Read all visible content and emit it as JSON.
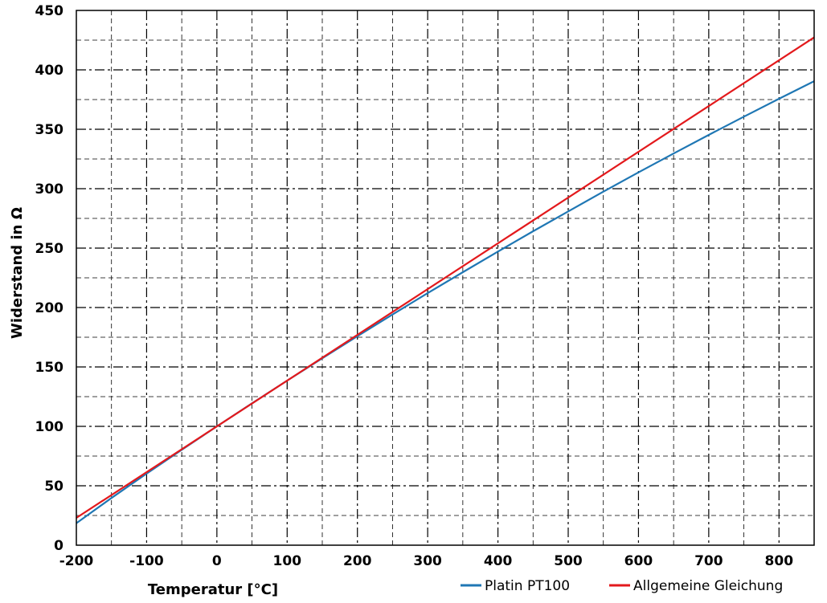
{
  "chart_data": {
    "type": "line",
    "xlabel": "Temperatur [°C]",
    "ylabel": "Widerstand in Ω",
    "xlim": [
      -200,
      850
    ],
    "ylim": [
      0,
      450
    ],
    "x_ticks": [
      -200,
      -100,
      0,
      100,
      200,
      300,
      400,
      500,
      600,
      700,
      800
    ],
    "y_ticks": [
      0,
      50,
      100,
      150,
      200,
      250,
      300,
      350,
      400,
      450
    ],
    "x_minor_step": 50,
    "y_minor_step": 25,
    "grid": true,
    "legend_position": "bottom-right",
    "series": [
      {
        "name": "Platin PT100",
        "color": "#1f77b4",
        "x": [
          -200,
          -150,
          -100,
          -50,
          0,
          50,
          100,
          150,
          200,
          250,
          300,
          350,
          400,
          450,
          500,
          550,
          600,
          650,
          700,
          750,
          800,
          850
        ],
        "y": [
          18.5,
          39.7,
          60.3,
          80.3,
          100.0,
          119.4,
          138.5,
          157.3,
          175.9,
          194.1,
          212.1,
          229.7,
          247.1,
          264.2,
          280.9,
          297.5,
          313.7,
          329.6,
          345.3,
          360.6,
          375.7,
          390.5
        ]
      },
      {
        "name": "Allgemeine Gleichung",
        "color": "#e3191c",
        "x": [
          -200,
          850
        ],
        "y": [
          23.0,
          427.3
        ]
      }
    ]
  }
}
